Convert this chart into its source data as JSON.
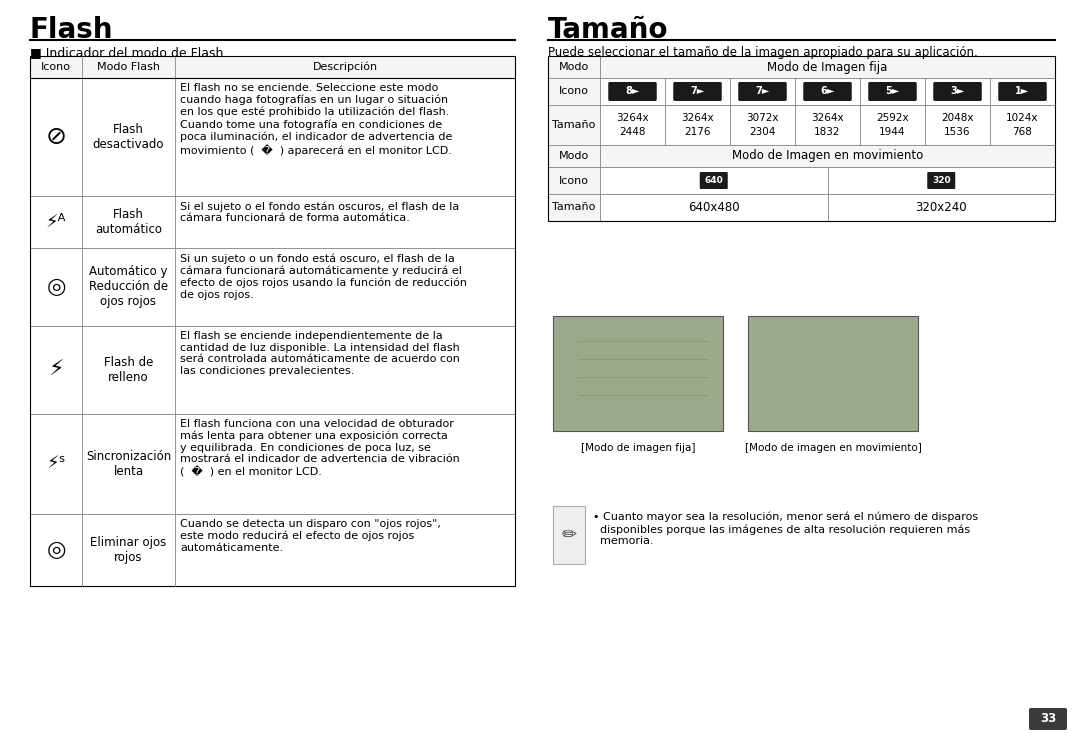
{
  "bg_color": "#ffffff",
  "page_number": "33",
  "left_title": "Flash",
  "left_subtitle": "■ Indicador del modo de Flash",
  "flash_table_headers": [
    "Icono",
    "Modo Flash",
    "Descripción"
  ],
  "flash_rows": [
    {
      "icon_symbol": "flash_off",
      "mode": "Flash\ndesactivado",
      "desc": "El flash no se enciende. Seleccione este modo\ncuando haga fotografías en un lugar o situación\nen los que esté prohibido la utilización del flash.\nCuando tome una fotografía en condiciones de\npoca iluminación, el indicador de advertencia de\nmovimiento (  �  ) aparecerá en el monitor LCD."
    },
    {
      "icon_symbol": "flash_auto",
      "mode": "Flash\nautomático",
      "desc": "Si el sujeto o el fondo están oscuros, el flash de la\ncámara funcionará de forma automática."
    },
    {
      "icon_symbol": "eye_auto",
      "mode": "Automático y\nReducción de\nojos rojos",
      "desc": "Si un sujeto o un fondo está oscuro, el flash de la\ncámara funcionará automáticamente y reducirá el\nefecto de ojos rojos usando la función de reducción\nde ojos rojos."
    },
    {
      "icon_symbol": "flash_fill",
      "mode": "Flash de\nrelleno",
      "desc": "El flash se enciende independientemente de la\ncantidad de luz disponible. La intensidad del flash\nserá controlada automáticamente de acuerdo con\nlas condiciones prevalecientes."
    },
    {
      "icon_symbol": "flash_slow",
      "mode": "Sincronización\nlenta",
      "desc": "El flash funciona con una velocidad de obturador\nmás lenta para obtener una exposición correcta\ny equilibrada. En condiciones de poca luz, se\nmostrará el indicador de advertencia de vibración\n(  �  ) en el monitor LCD."
    },
    {
      "icon_symbol": "eye_remove",
      "mode": "Eliminar ojos\nrojos",
      "desc": "Cuando se detecta un disparo con \"ojos rojos\",\neste modo reducirá el efecto de ojos rojos\nautomáticamente."
    }
  ],
  "right_title": "Tamaño",
  "right_subtitle": "Puede seleccionar el tamaño de la imagen apropiado para su aplicación.",
  "size_table": {
    "fixed_header": "Modo de Imagen fija",
    "fixed_icons": [
      "8►",
      "7►",
      "7►",
      "6►",
      "5►",
      "3►",
      "1►"
    ],
    "fixed_sizes_line1": [
      "3264x",
      "3264x",
      "3072x",
      "3264x",
      "2592x",
      "2048x",
      "1024x"
    ],
    "fixed_sizes_line2": [
      "2448",
      "2176",
      "2304",
      "1832",
      "1944",
      "1536",
      "768"
    ],
    "motion_header": "Modo de Imagen en movimiento",
    "motion_icons": [
      "640",
      "320"
    ],
    "motion_sizes": [
      "640x480",
      "320x240"
    ]
  },
  "note_text": "• Cuanto mayor sea la resolución, menor será el número de disparos\n  disponibles porque las imágenes de alta resolución requieren más\n  memoria.",
  "cam_label_left": "[Modo de imagen fija]",
  "cam_label_right": "[Modo de imagen en movimiento]"
}
